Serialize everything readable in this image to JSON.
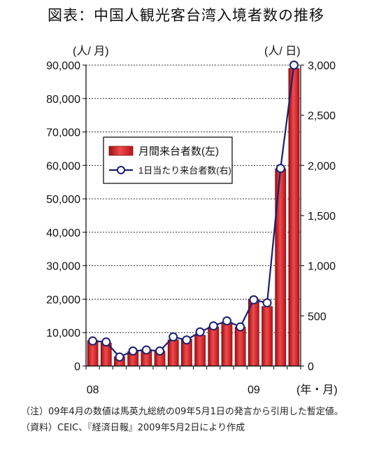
{
  "chart_data": {
    "type": "bar+line",
    "title": "図表：中国人観光客台湾入境者数の推移",
    "left_axis_unit": "(人/ 月)",
    "right_axis_unit": "(人/ 日)",
    "x_axis_unit": "(年・月)",
    "left_ylim": [
      0,
      90000
    ],
    "left_ticks": [
      "0",
      "10,000",
      "20,000",
      "30,000",
      "40,000",
      "50,000",
      "60,000",
      "70,000",
      "80,000",
      "90,000"
    ],
    "right_ylim": [
      0,
      3000
    ],
    "right_ticks": [
      "0",
      "500",
      "1,000",
      "1,500",
      "2,000",
      "2,500",
      "3,000"
    ],
    "x_tick_labels": [
      {
        "index": 0,
        "label": "08"
      },
      {
        "index": 12,
        "label": "09"
      }
    ],
    "grid": true,
    "legend_position": "upper-left",
    "series": [
      {
        "name": "月間来台者数(左)",
        "kind": "bar",
        "axis": "left",
        "color": "#e8262b",
        "values": [
          7600,
          6900,
          2800,
          4300,
          4900,
          4400,
          7800,
          8000,
          9200,
          11700,
          12900,
          11600,
          19900,
          17800,
          59000,
          89000
        ]
      },
      {
        "name": "1日当たり来台者数(右)",
        "kind": "line",
        "axis": "right",
        "color": "#1a1f6e",
        "values": [
          250,
          240,
          90,
          150,
          160,
          150,
          290,
          260,
          340,
          400,
          450,
          390,
          660,
          630,
          1970,
          3000
        ]
      }
    ]
  },
  "notes": {
    "line1": "（注）09年4月の数値は馬英九総統の09年5月1日の発言から引用した暫定値。",
    "line2": "（資料）CEIC、『経済日報』2009年5月2日により作成"
  }
}
